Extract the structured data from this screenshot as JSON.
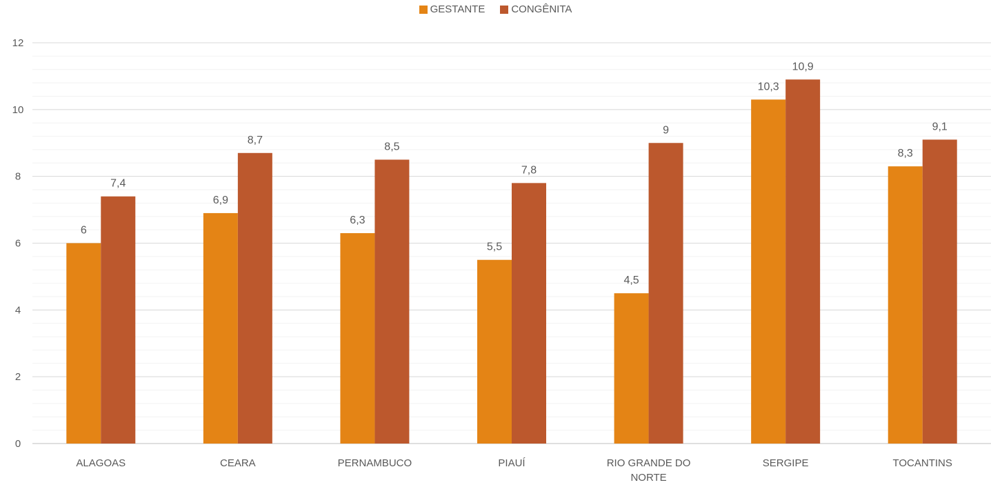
{
  "chart_data": {
    "type": "bar",
    "categories": [
      "ALAGOAS",
      "CEARA",
      "PERNAMBUCO",
      "PIAUÍ",
      "RIO GRANDE DO NORTE",
      "SERGIPE",
      "TOCANTINS"
    ],
    "category_lines": [
      [
        "ALAGOAS"
      ],
      [
        "CEARA"
      ],
      [
        "PERNAMBUCO"
      ],
      [
        "PIAUÍ"
      ],
      [
        "RIO GRANDE DO",
        "NORTE"
      ],
      [
        "SERGIPE"
      ],
      [
        "TOCANTINS"
      ]
    ],
    "series": [
      {
        "name": "GESTANTE",
        "color": "#E48415",
        "values": [
          6,
          6.9,
          6.3,
          5.5,
          4.5,
          10.3,
          8.3
        ],
        "labels": [
          "6",
          "6,9",
          "6,3",
          "5,5",
          "4,5",
          "10,3",
          "8,3"
        ]
      },
      {
        "name": "CONGÊNITA",
        "color": "#BC582D",
        "values": [
          7.4,
          8.7,
          8.5,
          7.8,
          9,
          10.9,
          9.1
        ],
        "labels": [
          "7,4",
          "8,7",
          "8,5",
          "7,8",
          "9",
          "10,9",
          "9,1"
        ]
      }
    ],
    "ylim": [
      0,
      12
    ],
    "yticks": [
      0,
      2,
      4,
      6,
      8,
      10,
      12
    ],
    "title": "",
    "xlabel": "",
    "ylabel": "",
    "grid": true,
    "legend_position": "top-center"
  }
}
